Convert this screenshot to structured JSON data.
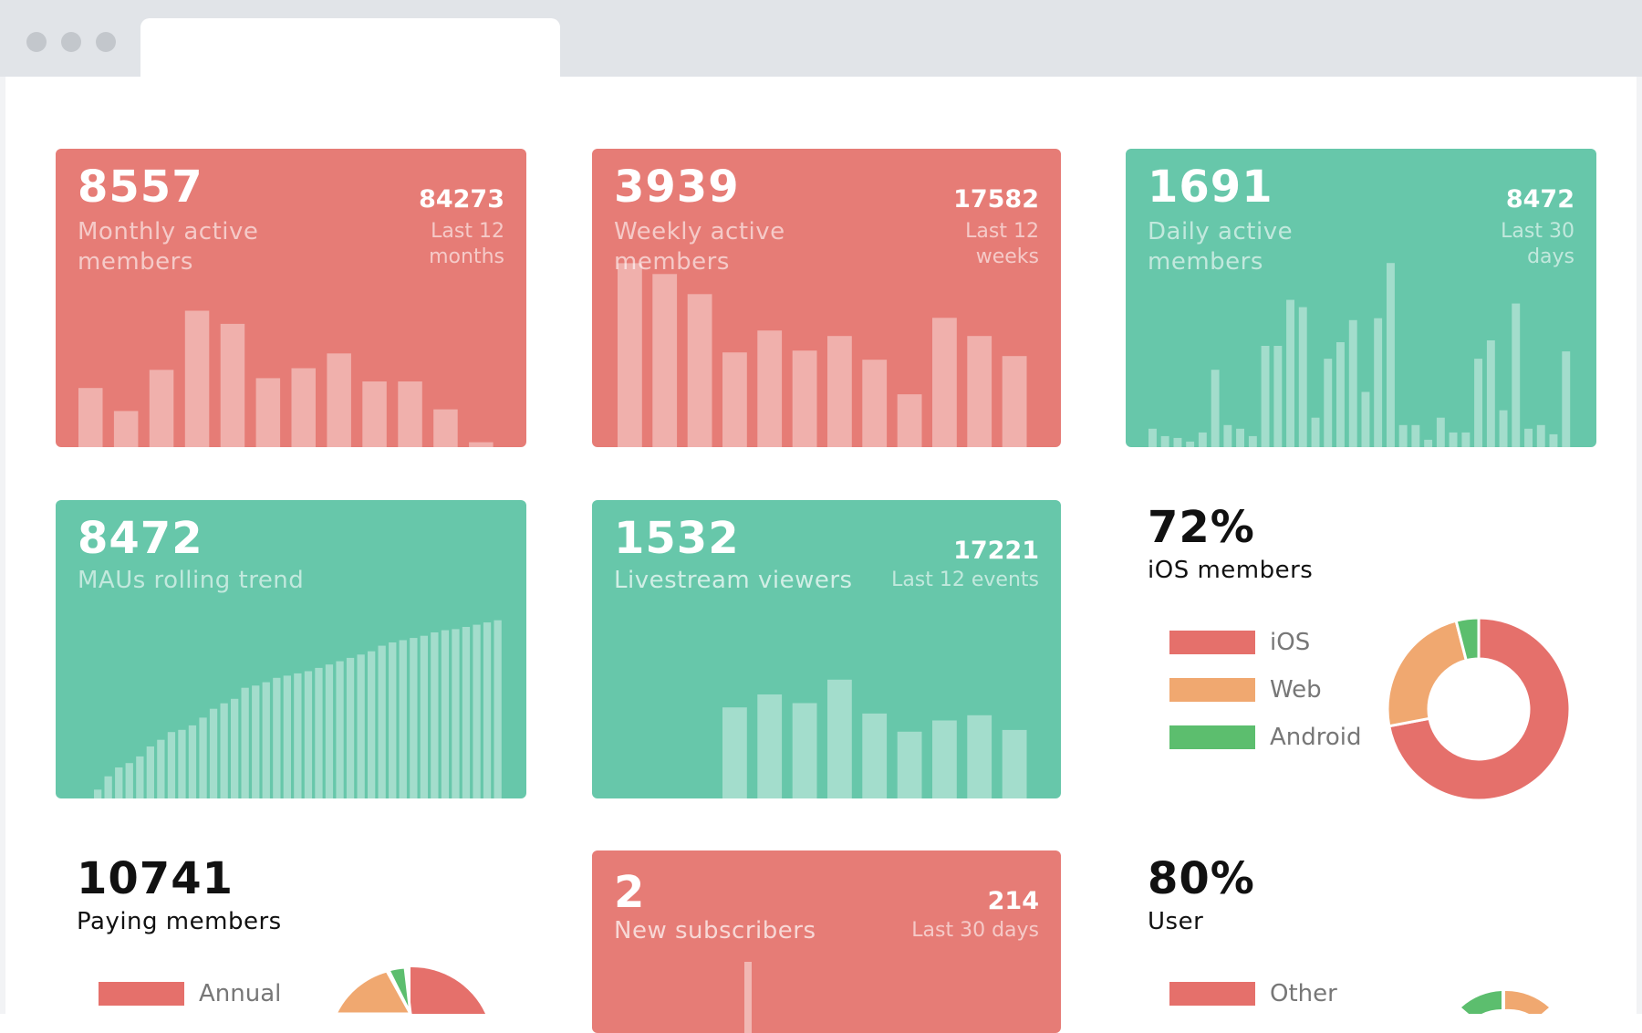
{
  "colors": {
    "red_card": "#e67c76",
    "green_card": "#67c7aa",
    "bar_light": "rgba(255,255,255,0.4)",
    "ios": "#e5706b",
    "web": "#f0a870",
    "android": "#5cbe6e"
  },
  "cards": {
    "monthly": {
      "value": "8557",
      "label": "Monthly active members",
      "side_value": "84273",
      "side_label": "Last 12 months"
    },
    "weekly": {
      "value": "3939",
      "label": "Weekly active members",
      "side_value": "17582",
      "side_label": "Last 12 weeks"
    },
    "daily": {
      "value": "1691",
      "label": "Daily active members",
      "side_value": "8472",
      "side_label": "Last 30 days"
    },
    "maus": {
      "value": "8472",
      "label": "MAUs rolling trend"
    },
    "livestream": {
      "value": "1532",
      "label": "Livestream viewers",
      "side_value": "17221",
      "side_label": "Last 12 events"
    },
    "new_subscribers": {
      "value": "2",
      "label": "New subscribers",
      "side_value": "214",
      "side_label": "Last 30 days"
    }
  },
  "ios_members": {
    "value": "72%",
    "label": "iOS members",
    "legend": [
      "iOS",
      "Web",
      "Android"
    ]
  },
  "paying_members": {
    "value": "10741",
    "label": "Paying members",
    "legend": [
      "Annual"
    ]
  },
  "user": {
    "value": "80%",
    "label": "User",
    "legend": [
      "Other"
    ]
  },
  "chart_data": [
    {
      "type": "bar",
      "name": "monthly",
      "values": [
        36,
        22,
        47,
        83,
        75,
        42,
        48,
        57,
        40,
        40,
        23,
        3
      ]
    },
    {
      "type": "bar",
      "name": "weekly",
      "values": [
        101,
        95,
        84,
        52,
        64,
        53,
        61,
        48,
        29,
        71,
        61,
        50
      ]
    },
    {
      "type": "bar",
      "name": "daily",
      "values": [
        10,
        6,
        5,
        3,
        8,
        42,
        12,
        10,
        6,
        55,
        55,
        80,
        76,
        16,
        48,
        57,
        69,
        30,
        70,
        100,
        12,
        12,
        4,
        16,
        8,
        8,
        48,
        58,
        20,
        78,
        10,
        12,
        7,
        52
      ]
    },
    {
      "type": "bar",
      "name": "maus",
      "values": [
        8,
        20,
        28,
        32,
        38,
        47,
        53,
        60,
        62,
        66,
        73,
        81,
        86,
        90,
        100,
        102,
        105,
        109,
        111,
        113,
        115,
        118,
        121,
        124,
        127,
        130,
        133,
        138,
        141,
        143,
        145,
        147,
        150,
        152,
        153,
        155,
        157,
        159,
        161
      ]
    },
    {
      "type": "bar",
      "name": "livestream",
      "values": [
        105,
        120,
        110,
        137,
        98,
        77,
        90,
        96,
        79
      ]
    },
    {
      "type": "bar",
      "name": "new_subscribers",
      "values": [
        5
      ]
    },
    {
      "type": "pie",
      "name": "ios_members_donut",
      "values": [
        72,
        24,
        4
      ],
      "labels": [
        "iOS",
        "Web",
        "Android"
      ]
    }
  ]
}
